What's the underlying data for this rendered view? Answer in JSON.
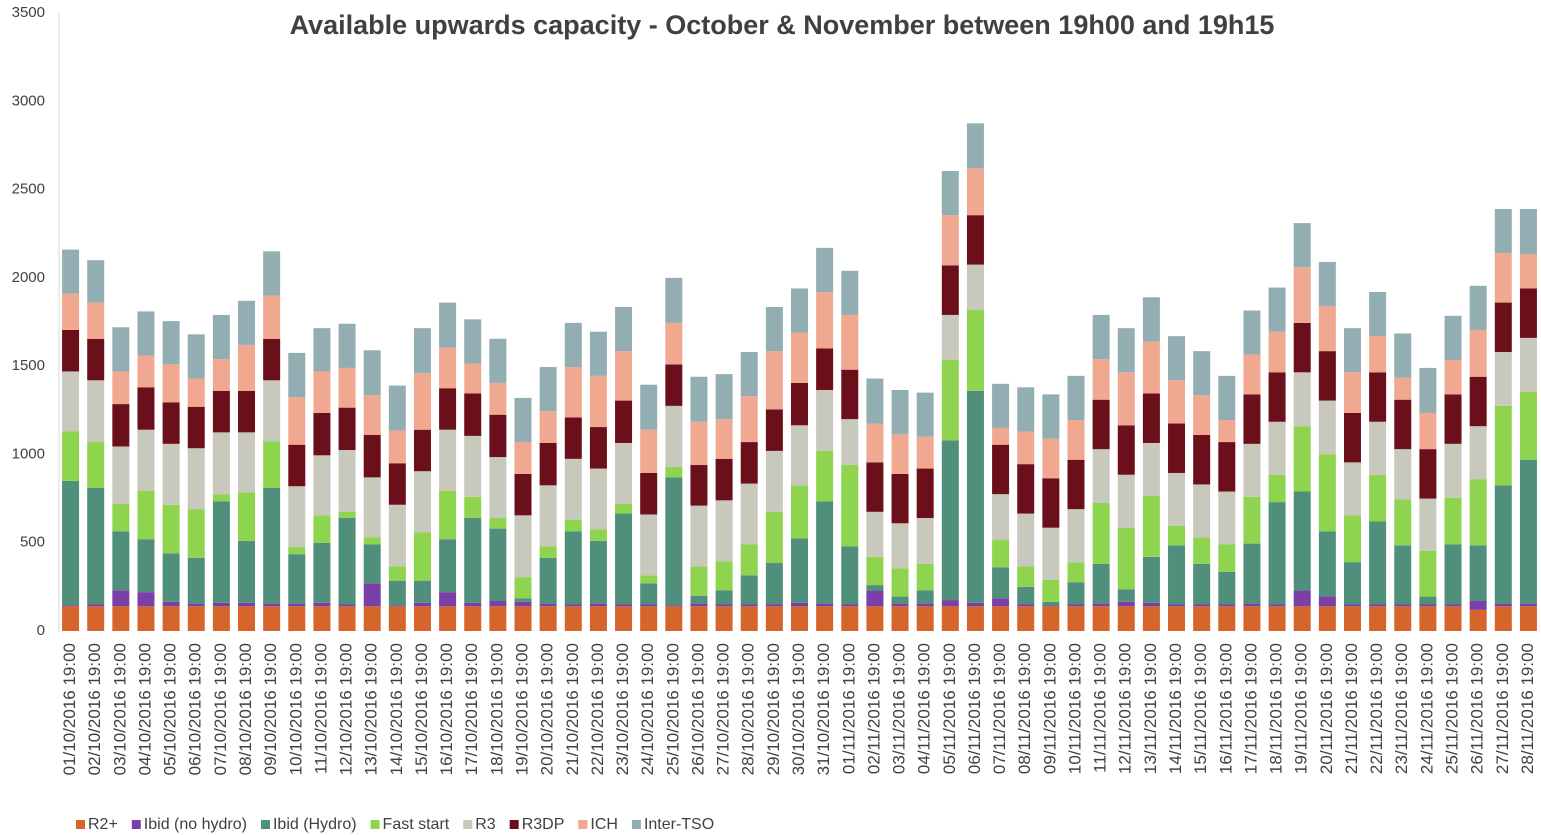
{
  "chart_data": {
    "type": "stacked_bar",
    "title": "Available upwards capacity - October & November between 19h00 and 19h15",
    "categories": [
      "01/10/2016 19:00",
      "02/10/2016 19:00",
      "03/10/2016 19:00",
      "04/10/2016 19:00",
      "05/10/2016 19:00",
      "06/10/2016 19:00",
      "07/10/2016 19:00",
      "08/10/2016 19:00",
      "09/10/2016 19:00",
      "10/10/2016 19:00",
      "11/10/2016 19:00",
      "12/10/2016 19:00",
      "13/10/2016 19:00",
      "14/10/2016 19:00",
      "15/10/2016 19:00",
      "16/10/2016 19:00",
      "17/10/2016 19:00",
      "18/10/2016 19:00",
      "19/10/2016 19:00",
      "20/10/2016 19:00",
      "21/10/2016 19:00",
      "22/10/2016 19:00",
      "23/10/2016 19:00",
      "24/10/2016 19:00",
      "25/10/2016 19:00",
      "26/10/2016 19:00",
      "27/10/2016 19:00",
      "28/10/2016 19:00",
      "29/10/2016 19:00",
      "30/10/2016 19:00",
      "31/10/2016 19:00",
      "01/11/2016 19:00",
      "02/11/2016 19:00",
      "03/11/2016 19:00",
      "04/11/2016 19:00",
      "05/11/2016 19:00",
      "06/11/2016 19:00",
      "07/11/2016 19:00",
      "08/11/2016 19:00",
      "09/11/2016 19:00",
      "10/11/2016 19:00",
      "11/11/2016 19:00",
      "12/11/2016 19:00",
      "13/11/2016 19:00",
      "14/11/2016 19:00",
      "15/11/2016 19:00",
      "16/11/2016 19:00",
      "17/11/2016 19:00",
      "18/11/2016 19:00",
      "19/11/2016 19:00",
      "20/11/2016 19:00",
      "21/11/2016 19:00",
      "22/11/2016 19:00",
      "23/11/2016 19:00",
      "24/11/2016 19:00",
      "25/11/2016 19:00",
      "26/11/2016 19:00",
      "27/11/2016 19:00",
      "28/11/2016 19:00"
    ],
    "series": [
      {
        "name": "R2+",
        "color": "#d5652a",
        "values": [
          140,
          140,
          140,
          140,
          140,
          140,
          140,
          140,
          140,
          140,
          140,
          140,
          140,
          140,
          140,
          140,
          140,
          140,
          140,
          140,
          140,
          140,
          140,
          140,
          140,
          140,
          140,
          140,
          140,
          140,
          140,
          140,
          140,
          140,
          140,
          140,
          140,
          140,
          140,
          140,
          140,
          140,
          140,
          140,
          140,
          140,
          140,
          140,
          140,
          140,
          140,
          140,
          140,
          140,
          140,
          140,
          120,
          140,
          140
        ]
      },
      {
        "name": "Ibid (no hydro)",
        "color": "#7b3fa8",
        "values": [
          5,
          10,
          90,
          80,
          25,
          15,
          20,
          20,
          15,
          15,
          20,
          10,
          130,
          5,
          20,
          80,
          20,
          30,
          25,
          15,
          10,
          15,
          10,
          10,
          5,
          15,
          10,
          10,
          10,
          20,
          15,
          10,
          90,
          15,
          15,
          35,
          20,
          45,
          10,
          5,
          10,
          15,
          25,
          20,
          10,
          10,
          10,
          15,
          10,
          90,
          55,
          10,
          10,
          10,
          10,
          10,
          50,
          15,
          15
        ]
      },
      {
        "name": "Ibid (Hydro)",
        "color": "#4f8f7c",
        "values": [
          705,
          660,
          335,
          300,
          275,
          260,
          575,
          350,
          655,
          280,
          340,
          490,
          220,
          140,
          125,
          300,
          480,
          410,
          20,
          260,
          415,
          355,
          515,
          120,
          725,
          45,
          80,
          165,
          235,
          365,
          580,
          330,
          30,
          40,
          75,
          905,
          1200,
          175,
          100,
          20,
          125,
          225,
          70,
          260,
          335,
          230,
          185,
          340,
          580,
          560,
          370,
          240,
          470,
          335,
          45,
          340,
          315,
          670,
          815
        ]
      },
      {
        "name": "Fast start",
        "color": "#8fd44f",
        "values": [
          280,
          260,
          155,
          275,
          275,
          275,
          40,
          275,
          265,
          40,
          155,
          35,
          40,
          80,
          275,
          275,
          120,
          60,
          120,
          65,
          65,
          65,
          55,
          45,
          60,
          165,
          165,
          175,
          290,
          300,
          285,
          460,
          160,
          160,
          150,
          455,
          460,
          155,
          115,
          125,
          115,
          345,
          350,
          345,
          110,
          150,
          155,
          265,
          155,
          370,
          435,
          265,
          265,
          260,
          260,
          265,
          375,
          450,
          385
        ]
      },
      {
        "name": "R3",
        "color": "#c9c8bd",
        "values": [
          340,
          350,
          325,
          345,
          345,
          345,
          350,
          340,
          345,
          345,
          340,
          350,
          340,
          350,
          345,
          345,
          345,
          345,
          350,
          345,
          345,
          345,
          345,
          345,
          345,
          345,
          345,
          345,
          345,
          340,
          345,
          260,
          255,
          255,
          260,
          255,
          255,
          260,
          300,
          295,
          300,
          305,
          300,
          300,
          300,
          300,
          300,
          300,
          300,
          305,
          305,
          300,
          300,
          285,
          295,
          305,
          300,
          305,
          305
        ]
      },
      {
        "name": "R3DP",
        "color": "#6b0f1a",
        "values": [
          235,
          235,
          240,
          240,
          235,
          235,
          235,
          235,
          235,
          235,
          240,
          240,
          240,
          235,
          235,
          235,
          240,
          240,
          235,
          240,
          235,
          235,
          240,
          235,
          235,
          230,
          235,
          235,
          235,
          240,
          235,
          280,
          280,
          280,
          280,
          280,
          280,
          280,
          280,
          280,
          280,
          280,
          280,
          280,
          280,
          280,
          280,
          280,
          280,
          280,
          280,
          280,
          280,
          280,
          280,
          280,
          280,
          280,
          280
        ]
      },
      {
        "name": "ICH",
        "color": "#f0a890",
        "values": [
          205,
          205,
          185,
          180,
          215,
          160,
          180,
          260,
          245,
          270,
          235,
          225,
          225,
          185,
          320,
          230,
          170,
          180,
          180,
          180,
          285,
          290,
          280,
          245,
          235,
          245,
          225,
          260,
          330,
          285,
          320,
          310,
          220,
          225,
          180,
          285,
          265,
          95,
          185,
          225,
          225,
          230,
          300,
          295,
          245,
          225,
          125,
          225,
          230,
          315,
          255,
          230,
          205,
          125,
          205,
          195,
          265,
          280,
          195
        ]
      },
      {
        "name": "Inter-TSO",
        "color": "#93aeb3",
        "values": [
          250,
          240,
          250,
          250,
          245,
          250,
          250,
          250,
          250,
          250,
          245,
          250,
          255,
          255,
          255,
          255,
          250,
          250,
          250,
          250,
          250,
          250,
          250,
          255,
          255,
          255,
          255,
          250,
          250,
          250,
          250,
          250,
          255,
          250,
          250,
          250,
          255,
          250,
          250,
          250,
          250,
          250,
          250,
          250,
          250,
          250,
          250,
          250,
          250,
          250,
          250,
          250,
          250,
          250,
          255,
          250,
          250,
          250,
          255
        ]
      }
    ],
    "ylim": [
      0,
      3500
    ],
    "yticks": [
      0,
      500,
      1000,
      1500,
      2000,
      2500,
      3000,
      3500
    ],
    "grid": false,
    "legend": "bottom"
  }
}
